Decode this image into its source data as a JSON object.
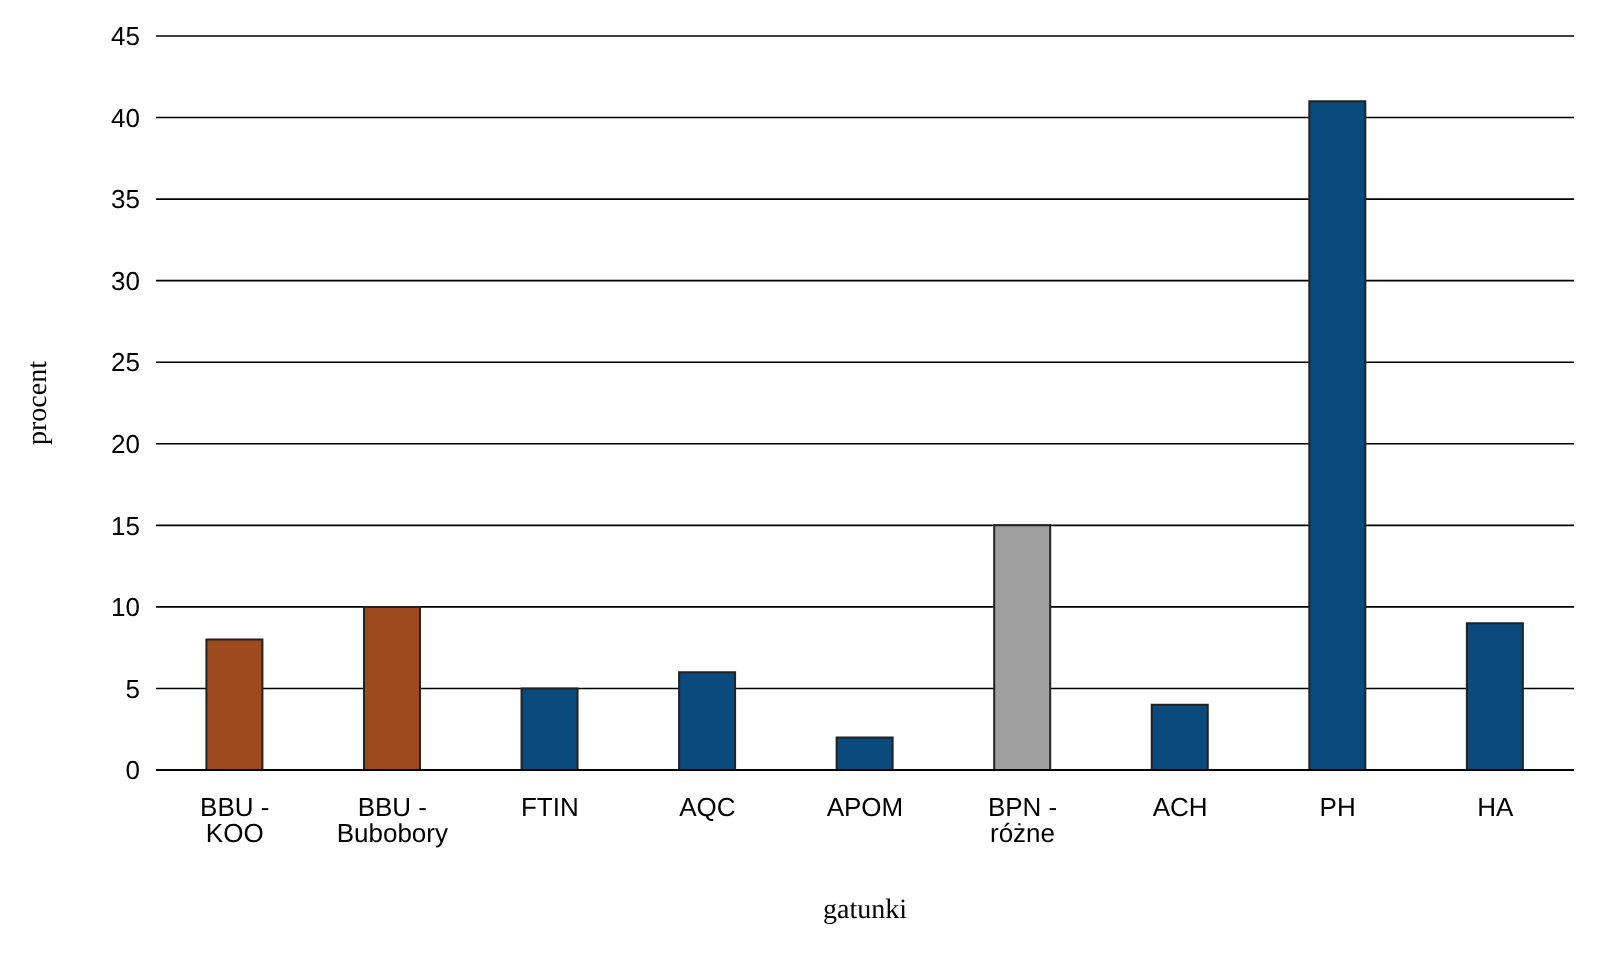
{
  "chart_data": {
    "type": "bar",
    "xlabel": "gatunki",
    "ylabel": "procent",
    "categories": [
      "BBU - KOO",
      "BBU - Bubobory",
      "FTIN",
      "AQC",
      "APOM",
      "BPN - różne",
      "ACH",
      "PH",
      "HA"
    ],
    "values": [
      8,
      10,
      5,
      6,
      2,
      15,
      4,
      41,
      9
    ],
    "colors": [
      "#9c4a1e",
      "#9c4a1e",
      "#0b4a7c",
      "#0b4a7c",
      "#0b4a7c",
      "#a0a0a0",
      "#0b4a7c",
      "#0b4a7c",
      "#0b4a7c"
    ],
    "ylim": [
      0,
      45
    ],
    "yticks": [
      0,
      5,
      10,
      15,
      20,
      25,
      30,
      35,
      40,
      45
    ],
    "grid": "y"
  }
}
